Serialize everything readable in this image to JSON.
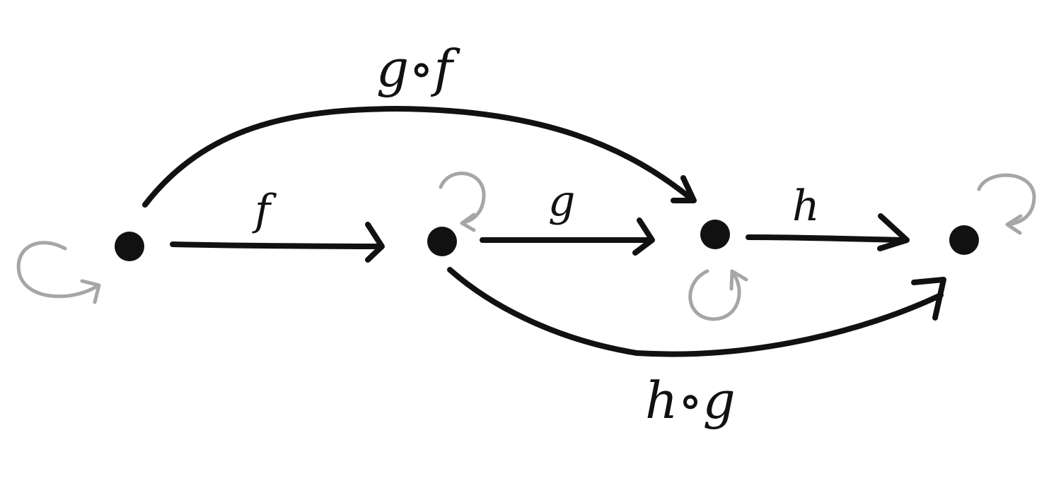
{
  "diagram": {
    "type": "category-composition-diagram",
    "objects": 4,
    "labels": {
      "f": "f",
      "g": "g",
      "h": "h",
      "g_of_f": "g∘f",
      "h_of_g": "h∘g"
    },
    "colors": {
      "arrow": "#111111",
      "identity_loop": "#a6a6a6",
      "background": "#ffffff"
    }
  }
}
